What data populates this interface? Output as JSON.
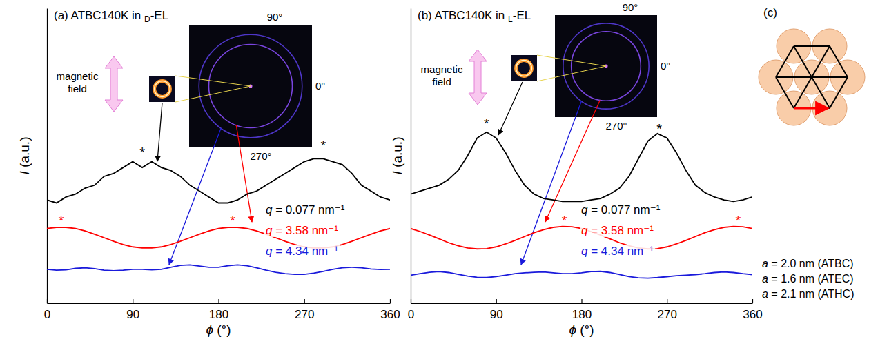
{
  "chart_data": [
    {
      "type": "line",
      "title": "(a) ATBC140K in D-EL",
      "x_label": "ϕ (°)",
      "y_label": "I (a.u.)",
      "xlim": [
        0,
        360
      ],
      "xticks": [
        0,
        90,
        180,
        270,
        360
      ],
      "ylim": [
        0,
        10
      ],
      "tick_labels": "x",
      "x": [
        0,
        10,
        20,
        30,
        40,
        50,
        60,
        70,
        80,
        90,
        100,
        110,
        120,
        130,
        140,
        150,
        160,
        170,
        180,
        190,
        200,
        210,
        220,
        230,
        240,
        250,
        260,
        270,
        280,
        290,
        300,
        310,
        320,
        330,
        340,
        350,
        360
      ],
      "series": [
        {
          "name": "q = 0.077 nm⁻¹",
          "color": "#000000",
          "values": [
            3.5,
            3.4,
            3.6,
            3.7,
            3.9,
            4.0,
            4.3,
            4.4,
            4.6,
            4.8,
            4.6,
            4.8,
            4.6,
            4.5,
            4.3,
            4.0,
            3.8,
            3.6,
            3.4,
            3.4,
            3.5,
            3.7,
            3.8,
            4.0,
            4.2,
            4.4,
            4.6,
            4.8,
            4.9,
            4.9,
            4.8,
            4.7,
            4.4,
            4.0,
            3.8,
            3.6,
            3.5
          ]
        },
        {
          "name": "q = 3.58 nm⁻¹",
          "color": "#ff0000",
          "values": [
            2.53,
            2.57,
            2.57,
            2.53,
            2.45,
            2.34,
            2.22,
            2.1,
            1.99,
            1.91,
            1.87,
            1.87,
            1.91,
            1.99,
            2.1,
            2.22,
            2.34,
            2.45,
            2.53,
            2.57,
            2.57,
            2.53,
            2.45,
            2.34,
            2.22,
            2.1,
            1.99,
            1.91,
            1.87,
            1.87,
            1.91,
            1.99,
            2.1,
            2.22,
            2.34,
            2.45,
            2.53
          ]
        },
        {
          "name": "q = 4.34 nm⁻¹",
          "color": "#1a1adb",
          "values": [
            1.15,
            1.12,
            1.13,
            1.18,
            1.2,
            1.17,
            1.12,
            1.1,
            1.12,
            1.15,
            1.15,
            1.13,
            1.15,
            1.22,
            1.28,
            1.3,
            1.26,
            1.22,
            1.22,
            1.27,
            1.3,
            1.27,
            1.2,
            1.12,
            1.05,
            1.0,
            0.98,
            0.98,
            1.02,
            1.08,
            1.15,
            1.2,
            1.22,
            1.2,
            1.16,
            1.14,
            1.15
          ]
        }
      ],
      "annotations": [
        {
          "text": "*",
          "x": 100,
          "y": 5.2,
          "color": "#000000"
        },
        {
          "text": "*",
          "x": 290,
          "y": 5.45,
          "color": "#000000"
        },
        {
          "text": "*",
          "x": 15,
          "y": 2.9,
          "color": "#ff0000"
        },
        {
          "text": "*",
          "x": 195,
          "y": 2.9,
          "color": "#ff0000"
        }
      ]
    },
    {
      "type": "line",
      "title": "(b) ATBC140K in L-EL",
      "x_label": "ϕ (°)",
      "y_label": "I (a.u.)",
      "xlim": [
        0,
        360
      ],
      "xticks": [
        0,
        90,
        180,
        270,
        360
      ],
      "ylim": [
        0,
        10
      ],
      "tick_labels": "x",
      "x": [
        0,
        10,
        20,
        30,
        40,
        50,
        60,
        70,
        80,
        90,
        100,
        110,
        120,
        130,
        140,
        150,
        160,
        170,
        180,
        190,
        200,
        210,
        220,
        230,
        240,
        250,
        260,
        270,
        280,
        290,
        300,
        310,
        320,
        330,
        340,
        350,
        360
      ],
      "series": [
        {
          "name": "q = 0.077 nm⁻¹",
          "color": "#000000",
          "values": [
            3.7,
            3.8,
            3.9,
            4.0,
            4.2,
            4.5,
            5.0,
            5.6,
            5.8,
            5.6,
            5.1,
            4.5,
            4.0,
            3.7,
            3.55,
            3.5,
            3.45,
            3.45,
            3.45,
            3.5,
            3.55,
            3.7,
            3.9,
            4.3,
            4.9,
            5.5,
            5.75,
            5.6,
            5.1,
            4.5,
            4.0,
            3.75,
            3.6,
            3.5,
            3.45,
            3.5,
            3.6
          ]
        },
        {
          "name": "q = 3.58 nm⁻¹",
          "color": "#ff0000",
          "values": [
            2.53,
            2.43,
            2.31,
            2.18,
            2.05,
            1.95,
            1.87,
            1.84,
            1.85,
            1.91,
            2.01,
            2.13,
            2.26,
            2.39,
            2.49,
            2.57,
            2.6,
            2.59,
            2.53,
            2.43,
            2.31,
            2.18,
            2.05,
            1.95,
            1.87,
            1.84,
            1.85,
            1.91,
            2.01,
            2.13,
            2.26,
            2.39,
            2.49,
            2.57,
            2.6,
            2.59,
            2.53
          ]
        },
        {
          "name": "q = 4.34 nm⁻¹",
          "color": "#1a1adb",
          "values": [
            0.95,
            1.0,
            1.05,
            1.07,
            1.04,
            0.98,
            0.92,
            0.88,
            0.87,
            0.9,
            0.95,
            1.0,
            1.03,
            1.05,
            1.06,
            1.03,
            1.0,
            1.0,
            1.03,
            1.07,
            1.08,
            1.04,
            0.97,
            0.9,
            0.86,
            0.85,
            0.87,
            0.9,
            0.93,
            0.95,
            0.97,
            1.0,
            1.04,
            1.06,
            1.04,
            1.0,
            0.97
          ]
        }
      ],
      "annotations": [
        {
          "text": "*",
          "x": 80,
          "y": 6.2,
          "color": "#000000"
        },
        {
          "text": "*",
          "x": 262,
          "y": 6.0,
          "color": "#000000"
        },
        {
          "text": "*",
          "x": 162,
          "y": 2.9,
          "color": "#ff0000"
        },
        {
          "text": "*",
          "x": 345,
          "y": 2.9,
          "color": "#ff0000"
        }
      ]
    }
  ],
  "insets": [
    {
      "angle_labels": [
        "90°",
        "0°",
        "270°"
      ],
      "field_label": "magnetic field"
    },
    {
      "angle_labels": [
        "90°",
        "0°",
        "270°"
      ],
      "field_label": "magnetic field"
    }
  ],
  "panel_c": {
    "label": "(c)",
    "lattice_constants": [
      "a = 2.0 nm (ATBC)",
      "a = 1.6 nm (ATEC)",
      "a = 2.1 nm (ATHC)"
    ]
  }
}
